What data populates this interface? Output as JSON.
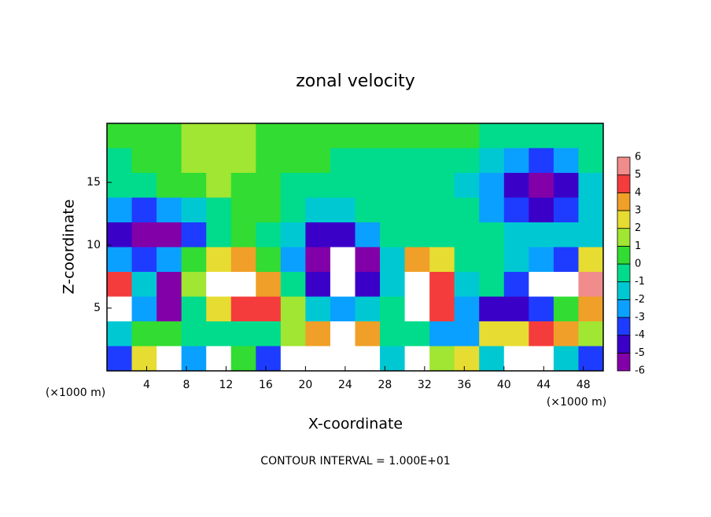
{
  "chart_data": {
    "type": "heatmap",
    "title": "zonal velocity",
    "x_label": "X-coordinate",
    "y_label": "Z-coordinate",
    "x_unit_label": "(×1000 m)",
    "footnote": "CONTOUR INTERVAL = 1.000E+01",
    "xlim": [
      0,
      50
    ],
    "ylim": [
      0,
      19.7
    ],
    "xticks": [
      4,
      8,
      12,
      16,
      20,
      24,
      28,
      32,
      36,
      40,
      44,
      48
    ],
    "yticks": [
      5,
      10,
      15
    ],
    "z": [
      [
        0.5,
        1,
        1,
        1.2,
        1.5,
        1.5,
        1,
        0.5,
        0.5,
        0.3,
        0.3,
        0.5,
        0.3,
        0.2,
        0.2,
        0,
        -0.5,
        -0.5,
        0,
        0
      ],
      [
        0,
        0.5,
        1,
        1.5,
        1.8,
        1.5,
        1,
        0.5,
        0.2,
        0,
        0,
        0,
        0,
        0,
        -0.5,
        -1,
        -2.5,
        -3,
        -2,
        -0.5
      ],
      [
        -0.5,
        0,
        0.5,
        1,
        1.2,
        1,
        0.5,
        0,
        -0.5,
        0,
        0,
        0,
        0,
        -0.5,
        -1,
        -2.5,
        -4,
        -5.5,
        -4,
        -1.5
      ],
      [
        -2,
        -3,
        -2.5,
        -1,
        0,
        0.5,
        0.3,
        -0.5,
        -1.5,
        -1,
        0,
        0,
        0,
        -0.5,
        -0.5,
        -2,
        -3.5,
        -4,
        -3,
        -1
      ],
      [
        -4,
        -5,
        -5.5,
        -3,
        0,
        0.3,
        0,
        -1.5,
        -4,
        -4.5,
        -2,
        0,
        0,
        0,
        0,
        -0.5,
        -1.5,
        -1.5,
        -1.5,
        -1
      ],
      [
        -2,
        -3,
        -2,
        0.5,
        3,
        4,
        1,
        -2,
        -5,
        7,
        -5,
        -1,
        4,
        3,
        0,
        0,
        -1,
        -2,
        -3,
        3
      ],
      [
        5,
        -1,
        -5,
        2,
        7,
        7,
        4,
        0,
        -4,
        7,
        -4,
        -1,
        7,
        5,
        -1,
        0,
        -3,
        7,
        7,
        6
      ],
      [
        7,
        -2,
        -5,
        0,
        3,
        5,
        5,
        2,
        -1,
        -2,
        -1,
        0,
        7,
        5,
        -2,
        -4,
        -4,
        -3,
        1,
        4
      ],
      [
        -1,
        1,
        1,
        0,
        0,
        0,
        0,
        2,
        4,
        7,
        4,
        0,
        0,
        -2,
        -2,
        3,
        3,
        5,
        4,
        2
      ],
      [
        -3,
        3,
        7,
        -2,
        7,
        1,
        -3,
        7,
        7,
        7,
        7,
        -1,
        7,
        2,
        3,
        -1,
        7,
        7,
        -1,
        -3
      ]
    ],
    "colorbar": {
      "levels": [
        -6,
        -5,
        -4,
        -3,
        -2,
        -1,
        0,
        1,
        2,
        3,
        4,
        5,
        6
      ],
      "colors": [
        "#8200a8",
        "#3a00c8",
        "#1e3cff",
        "#0aa0ff",
        "#00c8d2",
        "#00dc8c",
        "#32dc32",
        "#a0e632",
        "#e6dc32",
        "#f0a028",
        "#f53c3c",
        "#f08c8c"
      ],
      "over_color": "#ffffff",
      "under_color": "#8200a8"
    }
  }
}
